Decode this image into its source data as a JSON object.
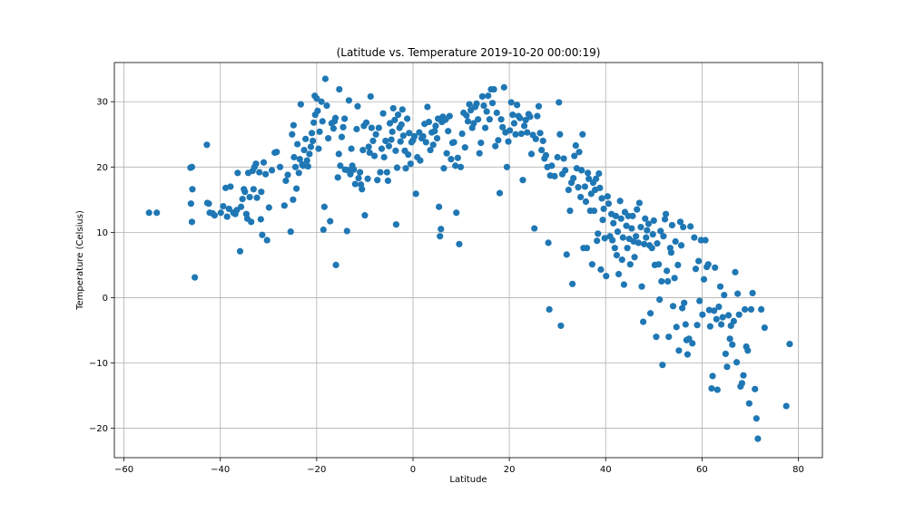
{
  "chart_data": {
    "type": "scatter",
    "title": "(Latitude vs. Temperature 2019-10-20 00:00:19)",
    "xlabel": "Latitude",
    "ylabel": "Temperature (Celsius)",
    "xlim": [
      -62,
      85
    ],
    "ylim": [
      -24.5,
      36
    ],
    "xticks": [
      -60,
      -40,
      -20,
      0,
      20,
      40,
      60,
      80
    ],
    "yticks": [
      -20,
      -10,
      0,
      10,
      20,
      30
    ],
    "grid": true,
    "marker_color": "#1f77b4",
    "points": [
      [
        -54.8,
        13.0
      ],
      [
        -53.2,
        13.0
      ],
      [
        -46.2,
        19.9
      ],
      [
        -45.9,
        20.0
      ],
      [
        -46.1,
        14.4
      ],
      [
        -45.9,
        11.6
      ],
      [
        -45.8,
        16.6
      ],
      [
        -45.3,
        3.1
      ],
      [
        -42.8,
        23.4
      ],
      [
        -42.7,
        14.5
      ],
      [
        -42.4,
        14.4
      ],
      [
        -42.2,
        13.0
      ],
      [
        -41.6,
        12.9
      ],
      [
        -41.2,
        12.6
      ],
      [
        -39.9,
        13.0
      ],
      [
        -39.4,
        14.0
      ],
      [
        -38.9,
        16.8
      ],
      [
        -38.6,
        12.4
      ],
      [
        -38.2,
        13.6
      ],
      [
        -37.9,
        17.0
      ],
      [
        -37.3,
        13.0
      ],
      [
        -36.9,
        12.8
      ],
      [
        -36.6,
        13.4
      ],
      [
        -36.4,
        19.1
      ],
      [
        -35.9,
        7.1
      ],
      [
        -35.7,
        13.9
      ],
      [
        -35.4,
        15.1
      ],
      [
        -35.1,
        16.6
      ],
      [
        -34.9,
        16.2
      ],
      [
        -34.6,
        12.8
      ],
      [
        -34.4,
        12.1
      ],
      [
        -34.2,
        19.1
      ],
      [
        -33.9,
        15.4
      ],
      [
        -33.6,
        11.6
      ],
      [
        -33.3,
        19.4
      ],
      [
        -33.1,
        16.6
      ],
      [
        -32.9,
        20.0
      ],
      [
        -32.6,
        20.5
      ],
      [
        -32.4,
        15.3
      ],
      [
        -31.9,
        19.2
      ],
      [
        -31.6,
        12.0
      ],
      [
        -31.5,
        16.2
      ],
      [
        -31.3,
        9.6
      ],
      [
        -31.0,
        20.7
      ],
      [
        -30.6,
        18.9
      ],
      [
        -30.3,
        8.8
      ],
      [
        -29.9,
        13.8
      ],
      [
        -29.3,
        19.5
      ],
      [
        -28.7,
        22.2
      ],
      [
        -28.3,
        22.3
      ],
      [
        -27.6,
        20.0
      ],
      [
        -26.7,
        14.1
      ],
      [
        -26.4,
        17.9
      ],
      [
        -26.0,
        18.8
      ],
      [
        -25.4,
        10.1
      ],
      [
        -25.1,
        25.0
      ],
      [
        -24.9,
        15.0
      ],
      [
        -24.7,
        21.5
      ],
      [
        -24.8,
        26.4
      ],
      [
        -24.4,
        20.0
      ],
      [
        -24.2,
        16.7
      ],
      [
        -24.0,
        23.5
      ],
      [
        -23.7,
        19.1
      ],
      [
        -23.5,
        21.2
      ],
      [
        -23.3,
        29.6
      ],
      [
        -23.0,
        20.4
      ],
      [
        -22.8,
        20.2
      ],
      [
        -22.6,
        22.6
      ],
      [
        -22.3,
        24.3
      ],
      [
        -22.0,
        21.0
      ],
      [
        -21.8,
        20.1
      ],
      [
        -21.5,
        22.0
      ],
      [
        -21.2,
        23.1
      ],
      [
        -21.0,
        25.2
      ],
      [
        -20.8,
        24.0
      ],
      [
        -20.6,
        26.8
      ],
      [
        -20.4,
        30.9
      ],
      [
        -20.3,
        28.0
      ],
      [
        -20.0,
        30.5
      ],
      [
        -19.8,
        28.6
      ],
      [
        -19.6,
        22.8
      ],
      [
        -19.4,
        25.4
      ],
      [
        -19.0,
        30.0
      ],
      [
        -18.8,
        27.0
      ],
      [
        -18.6,
        10.4
      ],
      [
        -18.4,
        13.9
      ],
      [
        -18.2,
        33.5
      ],
      [
        -17.9,
        29.4
      ],
      [
        -17.6,
        24.4
      ],
      [
        -17.2,
        11.7
      ],
      [
        -16.9,
        26.7
      ],
      [
        -16.5,
        25.9
      ],
      [
        -16.3,
        27.0
      ],
      [
        -16.1,
        27.5
      ],
      [
        -16.0,
        5.0
      ],
      [
        -15.6,
        18.4
      ],
      [
        -15.4,
        22.0
      ],
      [
        -15.3,
        31.9
      ],
      [
        -15.1,
        20.2
      ],
      [
        -14.8,
        24.6
      ],
      [
        -14.5,
        26.1
      ],
      [
        -14.2,
        27.4
      ],
      [
        -14.1,
        19.6
      ],
      [
        -13.7,
        10.2
      ],
      [
        -13.5,
        19.5
      ],
      [
        -13.3,
        30.2
      ],
      [
        -13.0,
        18.9
      ],
      [
        -12.8,
        22.8
      ],
      [
        -12.6,
        20.2
      ],
      [
        -12.3,
        19.6
      ],
      [
        -12.0,
        17.4
      ],
      [
        -11.7,
        25.8
      ],
      [
        -11.5,
        29.3
      ],
      [
        -11.3,
        18.3
      ],
      [
        -11.0,
        19.2
      ],
      [
        -10.8,
        17.3
      ],
      [
        -10.6,
        16.6
      ],
      [
        -10.4,
        22.6
      ],
      [
        -10.2,
        26.3
      ],
      [
        -10.0,
        12.6
      ],
      [
        -9.7,
        26.8
      ],
      [
        -9.4,
        18.2
      ],
      [
        -9.2,
        23.1
      ],
      [
        -9.0,
        22.2
      ],
      [
        -8.8,
        30.8
      ],
      [
        -8.6,
        26.0
      ],
      [
        -8.3,
        24.0
      ],
      [
        -8.0,
        21.7
      ],
      [
        -7.7,
        25.0
      ],
      [
        -7.4,
        18.0
      ],
      [
        -7.1,
        26.0
      ],
      [
        -6.8,
        19.2
      ],
      [
        -6.5,
        22.8
      ],
      [
        -6.2,
        28.2
      ],
      [
        -6.0,
        21.5
      ],
      [
        -5.7,
        24.0
      ],
      [
        -5.4,
        19.2
      ],
      [
        -5.2,
        17.9
      ],
      [
        -5.0,
        23.2
      ],
      [
        -4.8,
        26.7
      ],
      [
        -4.5,
        24.2
      ],
      [
        -4.3,
        25.4
      ],
      [
        -4.1,
        29.0
      ],
      [
        -3.8,
        27.2
      ],
      [
        -3.6,
        22.5
      ],
      [
        -3.5,
        11.2
      ],
      [
        -3.3,
        19.9
      ],
      [
        -3.1,
        28.0
      ],
      [
        -2.8,
        26.0
      ],
      [
        -2.6,
        23.9
      ],
      [
        -2.4,
        26.5
      ],
      [
        -2.2,
        28.8
      ],
      [
        -2.0,
        24.8
      ],
      [
        -1.7,
        22.5
      ],
      [
        -1.5,
        19.8
      ],
      [
        -1.2,
        27.4
      ],
      [
        -1.0,
        21.9
      ],
      [
        -0.8,
        25.2
      ],
      [
        -0.5,
        20.5
      ],
      [
        -0.3,
        23.8
      ],
      [
        0.0,
        24.1
      ],
      [
        0.3,
        24.7
      ],
      [
        0.6,
        15.9
      ],
      [
        0.9,
        21.5
      ],
      [
        1.3,
        25.3
      ],
      [
        1.5,
        21.0
      ],
      [
        1.8,
        24.4
      ],
      [
        2.1,
        24.7
      ],
      [
        2.4,
        26.6
      ],
      [
        2.7,
        23.8
      ],
      [
        3.0,
        29.2
      ],
      [
        3.3,
        26.9
      ],
      [
        3.6,
        22.6
      ],
      [
        3.9,
        25.3
      ],
      [
        4.2,
        23.4
      ],
      [
        4.5,
        25.5
      ],
      [
        4.7,
        26.3
      ],
      [
        5.0,
        24.4
      ],
      [
        5.2,
        27.4
      ],
      [
        5.4,
        13.9
      ],
      [
        5.6,
        9.4
      ],
      [
        5.8,
        10.5
      ],
      [
        6.0,
        26.9
      ],
      [
        6.2,
        27.7
      ],
      [
        6.4,
        19.8
      ],
      [
        6.6,
        27.2
      ],
      [
        6.8,
        27.3
      ],
      [
        7.0,
        22.1
      ],
      [
        7.3,
        25.5
      ],
      [
        7.6,
        27.8
      ],
      [
        7.9,
        21.2
      ],
      [
        8.2,
        23.7
      ],
      [
        8.5,
        23.8
      ],
      [
        8.8,
        20.2
      ],
      [
        9.0,
        13.0
      ],
      [
        9.3,
        21.4
      ],
      [
        9.6,
        8.2
      ],
      [
        9.9,
        20.0
      ],
      [
        10.2,
        25.1
      ],
      [
        10.5,
        28.3
      ],
      [
        10.8,
        23.0
      ],
      [
        11.1,
        27.9
      ],
      [
        11.4,
        27.0
      ],
      [
        11.7,
        29.6
      ],
      [
        12.0,
        28.7
      ],
      [
        12.3,
        26.0
      ],
      [
        12.6,
        26.7
      ],
      [
        12.9,
        29.2
      ],
      [
        13.2,
        29.7
      ],
      [
        13.5,
        27.3
      ],
      [
        13.8,
        22.1
      ],
      [
        14.1,
        23.7
      ],
      [
        14.4,
        30.8
      ],
      [
        14.7,
        29.4
      ],
      [
        15.0,
        26.0
      ],
      [
        15.3,
        28.5
      ],
      [
        15.6,
        30.9
      ],
      [
        15.9,
        27.3
      ],
      [
        16.2,
        31.9
      ],
      [
        16.5,
        29.8
      ],
      [
        16.8,
        31.9
      ],
      [
        17.1,
        23.2
      ],
      [
        17.4,
        28.3
      ],
      [
        17.7,
        24.1
      ],
      [
        18.0,
        16.0
      ],
      [
        18.3,
        27.3
      ],
      [
        18.6,
        26.1
      ],
      [
        18.9,
        32.2
      ],
      [
        19.2,
        25.3
      ],
      [
        19.5,
        20.0
      ],
      [
        19.8,
        23.9
      ],
      [
        20.1,
        25.6
      ],
      [
        20.4,
        29.9
      ],
      [
        20.7,
        28.0
      ],
      [
        21.0,
        26.7
      ],
      [
        21.3,
        25.0
      ],
      [
        21.6,
        29.5
      ],
      [
        21.9,
        27.8
      ],
      [
        22.2,
        27.5
      ],
      [
        22.5,
        25.1
      ],
      [
        22.8,
        18.0
      ],
      [
        23.1,
        26.3
      ],
      [
        23.4,
        27.2
      ],
      [
        23.7,
        25.3
      ],
      [
        24.0,
        28.1
      ],
      [
        24.3,
        27.7
      ],
      [
        24.6,
        22.0
      ],
      [
        24.9,
        24.9
      ],
      [
        25.2,
        10.6
      ],
      [
        25.5,
        24.3
      ],
      [
        25.8,
        27.8
      ],
      [
        26.1,
        29.3
      ],
      [
        26.4,
        25.2
      ],
      [
        26.7,
        22.6
      ],
      [
        27.0,
        24.0
      ],
      [
        27.3,
        21.3
      ],
      [
        27.6,
        21.8
      ],
      [
        27.9,
        20.0
      ],
      [
        28.1,
        8.4
      ],
      [
        28.3,
        -1.8
      ],
      [
        28.5,
        18.7
      ],
      [
        28.8,
        20.2
      ],
      [
        29.4,
        18.6
      ],
      [
        30.0,
        21.5
      ],
      [
        30.3,
        29.9
      ],
      [
        30.5,
        25.0
      ],
      [
        30.7,
        -4.3
      ],
      [
        31.0,
        18.9
      ],
      [
        31.3,
        21.3
      ],
      [
        31.6,
        19.5
      ],
      [
        31.9,
        6.6
      ],
      [
        32.3,
        16.5
      ],
      [
        32.6,
        13.3
      ],
      [
        32.9,
        17.6
      ],
      [
        33.1,
        2.1
      ],
      [
        33.3,
        18.3
      ],
      [
        33.5,
        21.7
      ],
      [
        33.8,
        23.3
      ],
      [
        34.0,
        19.8
      ],
      [
        34.3,
        16.9
      ],
      [
        34.5,
        22.3
      ],
      [
        34.8,
        15.4
      ],
      [
        35.0,
        19.5
      ],
      [
        35.2,
        25.0
      ],
      [
        35.4,
        7.6
      ],
      [
        35.7,
        17.0
      ],
      [
        35.9,
        14.7
      ],
      [
        36.1,
        7.6
      ],
      [
        36.3,
        19.1
      ],
      [
        36.5,
        18.2
      ],
      [
        36.8,
        13.3
      ],
      [
        37.0,
        15.9
      ],
      [
        37.2,
        5.1
      ],
      [
        37.4,
        17.6
      ],
      [
        37.6,
        13.3
      ],
      [
        37.8,
        16.5
      ],
      [
        38.0,
        18.2
      ],
      [
        38.2,
        8.7
      ],
      [
        38.4,
        9.8
      ],
      [
        38.6,
        19.0
      ],
      [
        38.8,
        16.8
      ],
      [
        39.0,
        4.3
      ],
      [
        39.2,
        15.2
      ],
      [
        39.4,
        11.9
      ],
      [
        39.6,
        13.6
      ],
      [
        39.8,
        9.1
      ],
      [
        40.1,
        3.3
      ],
      [
        40.4,
        15.5
      ],
      [
        40.6,
        14.4
      ],
      [
        40.9,
        9.4
      ],
      [
        41.2,
        12.8
      ],
      [
        41.4,
        8.8
      ],
      [
        41.6,
        11.4
      ],
      [
        41.9,
        7.6
      ],
      [
        42.1,
        12.5
      ],
      [
        42.3,
        6.5
      ],
      [
        42.5,
        10.1
      ],
      [
        42.7,
        3.6
      ],
      [
        43.0,
        14.8
      ],
      [
        43.2,
        12.1
      ],
      [
        43.4,
        5.8
      ],
      [
        43.6,
        9.2
      ],
      [
        43.8,
        2.0
      ],
      [
        44.0,
        13.1
      ],
      [
        44.3,
        11.0
      ],
      [
        44.5,
        7.6
      ],
      [
        44.7,
        12.5
      ],
      [
        44.9,
        9.0
      ],
      [
        45.1,
        5.1
      ],
      [
        45.4,
        10.6
      ],
      [
        45.6,
        12.5
      ],
      [
        45.8,
        8.6
      ],
      [
        46.0,
        6.2
      ],
      [
        46.3,
        9.4
      ],
      [
        46.5,
        13.5
      ],
      [
        46.8,
        8.4
      ],
      [
        47.0,
        14.5
      ],
      [
        47.3,
        10.8
      ],
      [
        47.5,
        1.7
      ],
      [
        47.8,
        -3.7
      ],
      [
        48.0,
        8.2
      ],
      [
        48.2,
        12.1
      ],
      [
        48.4,
        9.2
      ],
      [
        48.6,
        10.3
      ],
      [
        48.9,
        11.3
      ],
      [
        49.1,
        8.0
      ],
      [
        49.3,
        -2.4
      ],
      [
        49.6,
        7.6
      ],
      [
        49.8,
        9.7
      ],
      [
        50.0,
        11.8
      ],
      [
        50.2,
        5.0
      ],
      [
        50.5,
        -6.0
      ],
      [
        50.7,
        8.3
      ],
      [
        51.0,
        5.1
      ],
      [
        51.2,
        -0.3
      ],
      [
        51.4,
        10.2
      ],
      [
        51.6,
        2.5
      ],
      [
        51.8,
        -10.3
      ],
      [
        52.0,
        9.4
      ],
      [
        52.3,
        12.0
      ],
      [
        52.5,
        12.8
      ],
      [
        52.7,
        4.1
      ],
      [
        52.9,
        2.5
      ],
      [
        53.1,
        -6.0
      ],
      [
        53.4,
        7.6
      ],
      [
        53.6,
        6.9
      ],
      [
        53.8,
        11.1
      ],
      [
        54.0,
        -1.3
      ],
      [
        54.3,
        3.0
      ],
      [
        54.5,
        8.6
      ],
      [
        54.7,
        -4.5
      ],
      [
        55.0,
        5.0
      ],
      [
        55.2,
        -8.1
      ],
      [
        55.5,
        11.6
      ],
      [
        55.7,
        8.0
      ],
      [
        55.9,
        -1.6
      ],
      [
        56.1,
        10.8
      ],
      [
        56.3,
        -0.8
      ],
      [
        56.6,
        -4.1
      ],
      [
        56.8,
        -6.5
      ],
      [
        57.0,
        -8.7
      ],
      [
        57.3,
        -6.3
      ],
      [
        57.6,
        10.9
      ],
      [
        58.0,
        -7.0
      ],
      [
        58.4,
        9.2
      ],
      [
        58.7,
        4.4
      ],
      [
        59.0,
        -4.2
      ],
      [
        59.3,
        5.6
      ],
      [
        59.5,
        -0.5
      ],
      [
        59.8,
        8.8
      ],
      [
        60.1,
        -2.6
      ],
      [
        60.4,
        2.8
      ],
      [
        60.7,
        8.8
      ],
      [
        61.0,
        4.7
      ],
      [
        61.3,
        5.1
      ],
      [
        61.5,
        -1.9
      ],
      [
        61.7,
        -4.4
      ],
      [
        62.0,
        -13.9
      ],
      [
        62.2,
        -12.0
      ],
      [
        62.5,
        -2.0
      ],
      [
        62.7,
        4.6
      ],
      [
        63.0,
        -3.3
      ],
      [
        63.2,
        -14.1
      ],
      [
        63.5,
        -1.4
      ],
      [
        63.8,
        1.7
      ],
      [
        64.0,
        -4.1
      ],
      [
        64.3,
        -3.0
      ],
      [
        64.6,
        0.4
      ],
      [
        64.9,
        -8.6
      ],
      [
        65.2,
        -10.6
      ],
      [
        65.5,
        -2.7
      ],
      [
        65.8,
        -6.3
      ],
      [
        66.0,
        -4.3
      ],
      [
        66.3,
        -7.2
      ],
      [
        66.6,
        -3.6
      ],
      [
        66.9,
        3.9
      ],
      [
        67.2,
        -9.9
      ],
      [
        67.4,
        0.6
      ],
      [
        67.7,
        -2.6
      ],
      [
        68.0,
        -13.6
      ],
      [
        68.3,
        -13.1
      ],
      [
        68.6,
        -11.9
      ],
      [
        68.9,
        -1.8
      ],
      [
        69.2,
        -7.5
      ],
      [
        69.5,
        -8.1
      ],
      [
        69.8,
        -16.2
      ],
      [
        70.2,
        -1.8
      ],
      [
        70.5,
        0.7
      ],
      [
        71.0,
        -14.0
      ],
      [
        71.3,
        -18.5
      ],
      [
        71.6,
        -21.6
      ],
      [
        72.3,
        -1.8
      ],
      [
        73.0,
        -4.6
      ],
      [
        77.5,
        -16.6
      ],
      [
        78.2,
        -7.1
      ]
    ]
  }
}
